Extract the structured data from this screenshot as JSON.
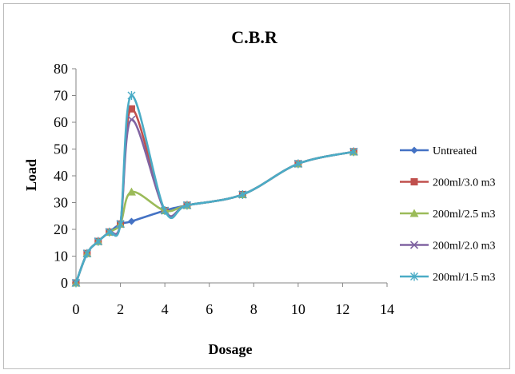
{
  "chart_data": {
    "type": "line",
    "title": "C.B.R",
    "xlabel": "Dosage",
    "ylabel": "Load",
    "xlim": [
      0,
      14
    ],
    "ylim": [
      0,
      80
    ],
    "x_ticks": [
      "0",
      "2",
      "4",
      "6",
      "8",
      "10",
      "12",
      "14"
    ],
    "y_ticks": [
      "0",
      "10",
      "20",
      "30",
      "40",
      "50",
      "60",
      "70",
      "80"
    ],
    "grid": false,
    "legend_position": "right",
    "x": [
      0,
      0.5,
      1,
      1.5,
      2,
      2.5,
      4,
      5,
      7.5,
      10,
      12.5
    ],
    "series": [
      {
        "name": "Untreated",
        "color": "#4472c4",
        "marker": "diamond",
        "values": [
          0,
          11,
          15.5,
          19,
          22,
          23,
          27,
          29,
          33,
          44.5,
          49
        ]
      },
      {
        "name": "200ml/3.0 m3",
        "color": "#c0504d",
        "marker": "square",
        "values": [
          0,
          11,
          15.5,
          19,
          22,
          65,
          27,
          29,
          33,
          44.5,
          49
        ]
      },
      {
        "name": "200ml/2.5 m3",
        "color": "#9bbb59",
        "marker": "triangle",
        "values": [
          0,
          11,
          15.5,
          19,
          22,
          34,
          27,
          29,
          33,
          44.5,
          49
        ]
      },
      {
        "name": "200ml/2.0 m3",
        "color": "#8064a2",
        "marker": "x",
        "values": [
          0,
          11,
          15.5,
          19,
          22,
          61,
          27,
          29,
          33,
          44.5,
          49
        ]
      },
      {
        "name": "200ml/1.5 m3",
        "color": "#4bacc6",
        "marker": "star",
        "values": [
          0,
          11,
          15.5,
          19,
          22,
          70,
          27,
          29,
          33,
          44.5,
          49
        ]
      }
    ]
  }
}
